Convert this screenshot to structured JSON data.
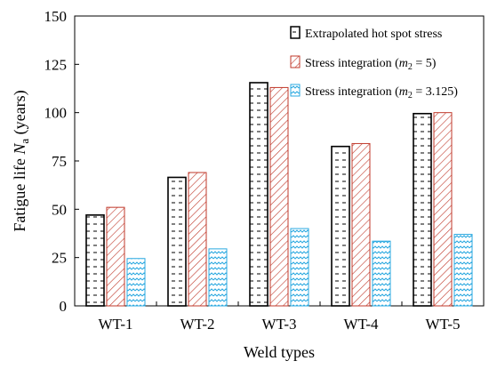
{
  "chart_data": {
    "type": "bar",
    "title": "",
    "xlabel": "Weld types",
    "ylabel_main": "Fatigue life ",
    "ylabel_symbol": "N",
    "ylabel_sub": "a",
    "ylabel_unit": " (years)",
    "ylim": [
      0,
      150
    ],
    "yticks": [
      0,
      25,
      50,
      75,
      100,
      125,
      150
    ],
    "grid": false,
    "legend_position": "top-right",
    "categories": [
      "WT-1",
      "WT-2",
      "WT-3",
      "WT-4",
      "WT-5"
    ],
    "series": [
      {
        "name": "Extrapolated hot spot stress",
        "values": [
          47,
          66.5,
          115.5,
          82.5,
          99.5
        ],
        "stroke": "#000000",
        "pattern": "dashes"
      },
      {
        "name_prefix": "Stress integration (",
        "name_var": "m",
        "name_sub": "2",
        "name_suffix": " = 5)",
        "values": [
          51,
          69,
          113,
          84,
          100
        ],
        "stroke": "#c0392b",
        "pattern": "diagonal"
      },
      {
        "name_prefix": "Stress integration (",
        "name_var": "m",
        "name_sub": "2",
        "name_suffix": " = 3.125)",
        "values": [
          24.5,
          29.5,
          40,
          33.5,
          37
        ],
        "stroke": "#29a8e0",
        "pattern": "waves"
      }
    ]
  }
}
